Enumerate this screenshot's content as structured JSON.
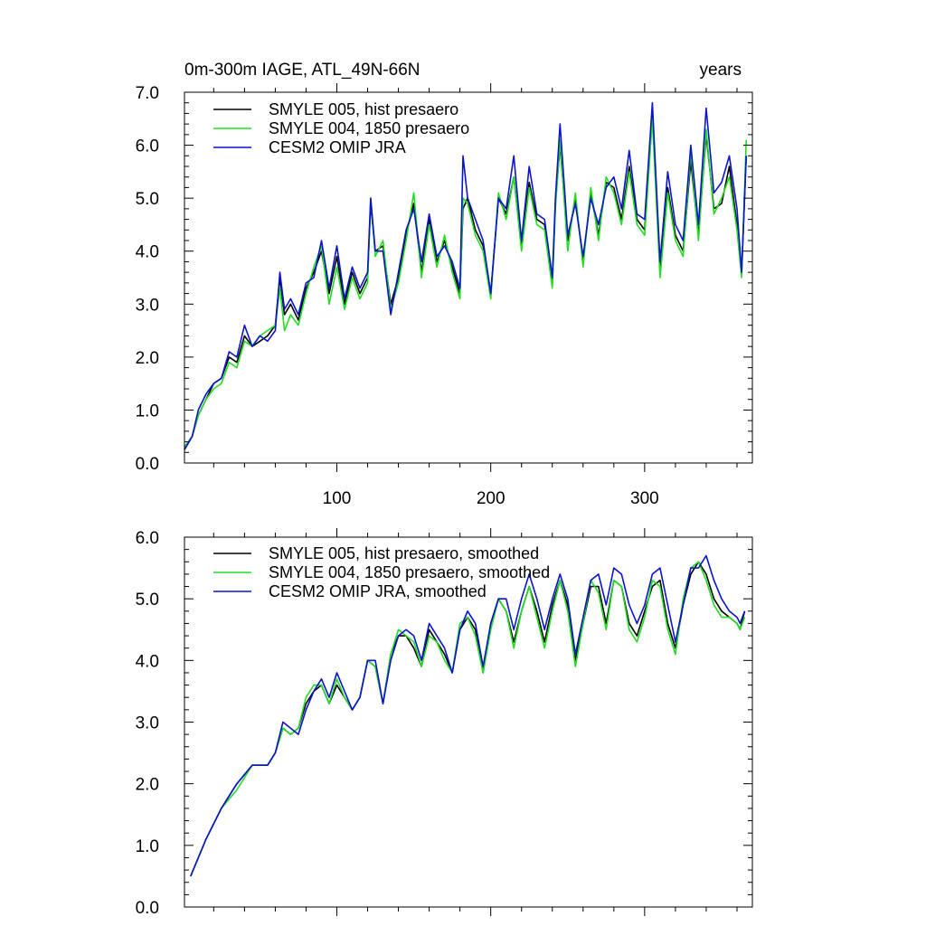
{
  "colors": {
    "series_a": "#000000",
    "series_b": "#22dd22",
    "series_c": "#0a14cc",
    "axis": "#000000",
    "background": "#ffffff"
  },
  "chart_data": [
    {
      "type": "line",
      "title_left": "0m-300m IAGE, ATL_49N-66N",
      "title_right": "years",
      "xlim": [
        1,
        370
      ],
      "ylim": [
        0,
        7
      ],
      "x_ticks": [
        100,
        200,
        300
      ],
      "x_tick_labels": [
        "100",
        "200",
        "300"
      ],
      "y_ticks": [
        0,
        1,
        2,
        3,
        4,
        5,
        6,
        7
      ],
      "y_tick_labels": [
        "0.0",
        "1.0",
        "2.0",
        "3.0",
        "4.0",
        "5.0",
        "6.0",
        "7.0"
      ],
      "series": [
        {
          "name": "SMYLE 005, hist presaero",
          "color_key": "series_a",
          "x": [
            1,
            6,
            10,
            15,
            20,
            25,
            30,
            35,
            40,
            45,
            50,
            55,
            60,
            63,
            66,
            70,
            75,
            80,
            85,
            90,
            95,
            100,
            105,
            110,
            115,
            120,
            122,
            125,
            130,
            135,
            140,
            145,
            150,
            155,
            160,
            165,
            170,
            175,
            180,
            182,
            185,
            190,
            195,
            200,
            205,
            210,
            215,
            220,
            225,
            230,
            235,
            240,
            242,
            245,
            250,
            255,
            260,
            265,
            270,
            275,
            280,
            285,
            290,
            295,
            300,
            305,
            310,
            315,
            320,
            325,
            330,
            335,
            340,
            345,
            350,
            355,
            360,
            363,
            366
          ],
          "values": [
            0.3,
            0.5,
            0.9,
            1.2,
            1.5,
            1.6,
            2.0,
            1.9,
            2.4,
            2.2,
            2.3,
            2.4,
            2.6,
            3.5,
            2.8,
            3.0,
            2.7,
            3.3,
            3.6,
            4.0,
            3.2,
            3.9,
            3.0,
            3.6,
            3.2,
            3.5,
            4.9,
            4.0,
            4.1,
            3.0,
            3.5,
            4.3,
            4.9,
            3.6,
            4.6,
            3.8,
            4.2,
            3.7,
            3.2,
            4.8,
            5.0,
            4.4,
            4.1,
            3.2,
            5.0,
            4.7,
            5.4,
            4.1,
            5.3,
            4.6,
            4.5,
            3.4,
            4.9,
            6.0,
            4.2,
            5.0,
            3.8,
            5.1,
            4.3,
            5.3,
            5.2,
            4.6,
            5.6,
            4.6,
            4.4,
            6.6,
            3.6,
            5.2,
            4.3,
            4.0,
            5.7,
            4.3,
            6.2,
            4.8,
            4.9,
            5.6,
            4.5,
            3.6,
            5.8
          ]
        },
        {
          "name": "SMYLE 004, 1850 presaero",
          "color_key": "series_b",
          "x": [
            1,
            6,
            10,
            15,
            20,
            25,
            30,
            35,
            40,
            45,
            50,
            55,
            60,
            63,
            66,
            70,
            75,
            80,
            85,
            90,
            95,
            100,
            105,
            110,
            115,
            120,
            122,
            125,
            130,
            135,
            140,
            145,
            150,
            155,
            160,
            165,
            170,
            175,
            180,
            182,
            185,
            190,
            195,
            200,
            205,
            210,
            215,
            220,
            225,
            230,
            235,
            240,
            242,
            245,
            250,
            255,
            260,
            265,
            270,
            275,
            280,
            285,
            290,
            295,
            300,
            305,
            310,
            315,
            320,
            325,
            330,
            335,
            340,
            345,
            350,
            355,
            360,
            363,
            366
          ],
          "values": [
            0.3,
            0.5,
            0.9,
            1.2,
            1.4,
            1.5,
            1.9,
            1.8,
            2.3,
            2.2,
            2.4,
            2.5,
            2.6,
            3.3,
            2.5,
            2.8,
            2.6,
            3.2,
            3.7,
            4.1,
            3.0,
            3.7,
            2.9,
            3.5,
            3.1,
            3.4,
            5.0,
            3.9,
            4.2,
            2.9,
            3.4,
            4.2,
            5.1,
            3.5,
            4.5,
            3.7,
            4.3,
            3.6,
            3.1,
            5.0,
            4.9,
            4.3,
            4.0,
            3.1,
            5.1,
            4.6,
            5.4,
            4.0,
            5.2,
            4.5,
            4.4,
            3.3,
            4.8,
            6.1,
            4.0,
            5.1,
            3.7,
            5.2,
            4.2,
            5.4,
            5.1,
            4.5,
            5.5,
            4.5,
            4.3,
            6.5,
            3.5,
            5.1,
            4.2,
            3.9,
            5.9,
            4.2,
            6.3,
            4.7,
            5.0,
            5.4,
            4.4,
            3.5,
            6.1
          ]
        },
        {
          "name": "CESM2 OMIP JRA",
          "color_key": "series_c",
          "x": [
            1,
            6,
            10,
            15,
            20,
            25,
            30,
            35,
            40,
            45,
            50,
            55,
            60,
            63,
            66,
            70,
            75,
            80,
            85,
            90,
            95,
            100,
            105,
            110,
            115,
            120,
            122,
            125,
            130,
            135,
            140,
            145,
            150,
            155,
            160,
            165,
            170,
            175,
            180,
            182,
            185,
            190,
            195,
            200,
            205,
            210,
            215,
            220,
            225,
            230,
            235,
            240,
            242,
            245,
            250,
            255,
            260,
            265,
            270,
            275,
            280,
            285,
            290,
            295,
            300,
            305,
            310,
            315,
            320,
            325,
            330,
            335,
            340,
            345,
            350,
            355,
            360,
            363,
            366
          ],
          "values": [
            0.25,
            0.5,
            1.0,
            1.3,
            1.5,
            1.6,
            2.1,
            2.0,
            2.6,
            2.2,
            2.4,
            2.3,
            2.5,
            3.6,
            2.9,
            3.1,
            2.8,
            3.4,
            3.5,
            4.2,
            3.3,
            4.1,
            3.1,
            3.7,
            3.3,
            3.6,
            5.0,
            4.0,
            4.0,
            2.8,
            3.6,
            4.4,
            4.8,
            3.8,
            4.7,
            3.9,
            4.1,
            3.8,
            3.3,
            5.8,
            5.0,
            4.6,
            4.2,
            3.2,
            5.0,
            4.8,
            5.8,
            4.2,
            5.6,
            4.7,
            4.6,
            3.5,
            5.0,
            6.4,
            4.3,
            4.9,
            3.9,
            5.0,
            4.5,
            5.2,
            5.4,
            4.8,
            5.9,
            4.7,
            4.6,
            6.8,
            3.8,
            5.5,
            4.5,
            4.2,
            6.0,
            4.5,
            6.7,
            5.1,
            5.3,
            5.8,
            4.8,
            3.6,
            5.8
          ]
        }
      ]
    },
    {
      "type": "line",
      "xlim": [
        1,
        370
      ],
      "ylim": [
        0,
        6
      ],
      "x_ticks": [
        100,
        200,
        300
      ],
      "y_ticks": [
        0,
        1,
        2,
        3,
        4,
        5,
        6
      ],
      "y_tick_labels": [
        "0.0",
        "1.0",
        "2.0",
        "3.0",
        "4.0",
        "5.0",
        "6.0"
      ],
      "series": [
        {
          "name": "SMYLE 005, hist presaero, smoothed",
          "color_key": "series_a",
          "x": [
            5,
            15,
            25,
            35,
            45,
            55,
            60,
            65,
            70,
            75,
            80,
            85,
            90,
            95,
            100,
            105,
            110,
            115,
            120,
            125,
            130,
            135,
            140,
            145,
            150,
            155,
            160,
            165,
            170,
            175,
            180,
            185,
            190,
            195,
            200,
            205,
            210,
            215,
            220,
            225,
            230,
            235,
            240,
            245,
            250,
            255,
            260,
            265,
            270,
            275,
            280,
            285,
            290,
            295,
            300,
            305,
            310,
            315,
            320,
            325,
            330,
            335,
            340,
            345,
            350,
            355,
            360,
            362,
            365
          ],
          "values": [
            0.5,
            1.1,
            1.6,
            2.0,
            2.3,
            2.3,
            2.5,
            2.9,
            2.8,
            2.9,
            3.3,
            3.5,
            3.6,
            3.3,
            3.6,
            3.4,
            3.2,
            3.4,
            4.0,
            3.9,
            3.3,
            4.1,
            4.4,
            4.4,
            4.2,
            3.9,
            4.5,
            4.3,
            4.1,
            3.8,
            4.5,
            4.7,
            4.5,
            3.8,
            4.6,
            5.0,
            4.8,
            4.3,
            4.8,
            5.2,
            4.8,
            4.3,
            4.9,
            5.3,
            4.9,
            4.0,
            4.6,
            5.2,
            5.2,
            4.6,
            5.3,
            5.2,
            4.6,
            4.4,
            4.8,
            5.2,
            5.3,
            4.6,
            4.2,
            4.9,
            5.4,
            5.6,
            5.4,
            5.0,
            4.8,
            4.7,
            4.6,
            4.5,
            4.8
          ]
        },
        {
          "name": "SMYLE 004, 1850 presaero, smoothed",
          "color_key": "series_b",
          "x": [
            5,
            15,
            25,
            35,
            45,
            55,
            60,
            65,
            70,
            75,
            80,
            85,
            90,
            95,
            100,
            105,
            110,
            115,
            120,
            125,
            130,
            135,
            140,
            145,
            150,
            155,
            160,
            165,
            170,
            175,
            180,
            185,
            190,
            195,
            200,
            205,
            210,
            215,
            220,
            225,
            230,
            235,
            240,
            245,
            250,
            255,
            260,
            265,
            270,
            275,
            280,
            285,
            290,
            295,
            300,
            305,
            310,
            315,
            320,
            325,
            330,
            335,
            340,
            345,
            350,
            355,
            360,
            362,
            365
          ],
          "values": [
            0.5,
            1.1,
            1.6,
            1.9,
            2.3,
            2.3,
            2.5,
            2.9,
            2.8,
            2.9,
            3.4,
            3.6,
            3.6,
            3.3,
            3.7,
            3.4,
            3.2,
            3.4,
            4.0,
            3.9,
            3.3,
            4.1,
            4.5,
            4.4,
            4.3,
            3.9,
            4.4,
            4.3,
            4.0,
            3.8,
            4.6,
            4.7,
            4.4,
            3.8,
            4.5,
            5.0,
            4.8,
            4.2,
            4.8,
            5.2,
            4.7,
            4.2,
            4.8,
            5.3,
            4.8,
            3.9,
            4.6,
            5.3,
            5.1,
            4.5,
            5.3,
            5.2,
            4.5,
            4.3,
            4.7,
            5.3,
            5.2,
            4.5,
            4.1,
            5.0,
            5.5,
            5.6,
            5.3,
            4.9,
            4.7,
            4.7,
            4.6,
            4.5,
            4.7
          ]
        },
        {
          "name": "CESM2 OMIP JRA, smoothed",
          "color_key": "series_c",
          "x": [
            5,
            15,
            25,
            35,
            45,
            55,
            60,
            65,
            70,
            75,
            80,
            85,
            90,
            95,
            100,
            105,
            110,
            115,
            120,
            125,
            130,
            135,
            140,
            145,
            150,
            155,
            160,
            165,
            170,
            175,
            180,
            185,
            190,
            195,
            200,
            205,
            210,
            215,
            220,
            225,
            230,
            235,
            240,
            245,
            250,
            255,
            260,
            265,
            270,
            275,
            280,
            285,
            290,
            295,
            300,
            305,
            310,
            315,
            320,
            325,
            330,
            335,
            340,
            345,
            350,
            355,
            360,
            362,
            365
          ],
          "values": [
            0.5,
            1.1,
            1.6,
            2.0,
            2.3,
            2.3,
            2.5,
            3.0,
            2.9,
            2.8,
            3.2,
            3.5,
            3.7,
            3.4,
            3.8,
            3.5,
            3.2,
            3.4,
            4.0,
            4.0,
            3.3,
            4.0,
            4.4,
            4.5,
            4.4,
            4.0,
            4.6,
            4.4,
            4.2,
            3.8,
            4.5,
            4.8,
            4.6,
            3.9,
            4.6,
            5.0,
            5.0,
            4.5,
            5.0,
            5.4,
            5.0,
            4.5,
            5.0,
            5.4,
            5.0,
            4.1,
            4.7,
            5.3,
            5.4,
            4.9,
            5.5,
            5.4,
            4.9,
            4.6,
            4.9,
            5.4,
            5.5,
            4.9,
            4.3,
            4.9,
            5.5,
            5.5,
            5.7,
            5.3,
            5.0,
            4.8,
            4.7,
            4.6,
            4.8
          ]
        }
      ]
    }
  ]
}
